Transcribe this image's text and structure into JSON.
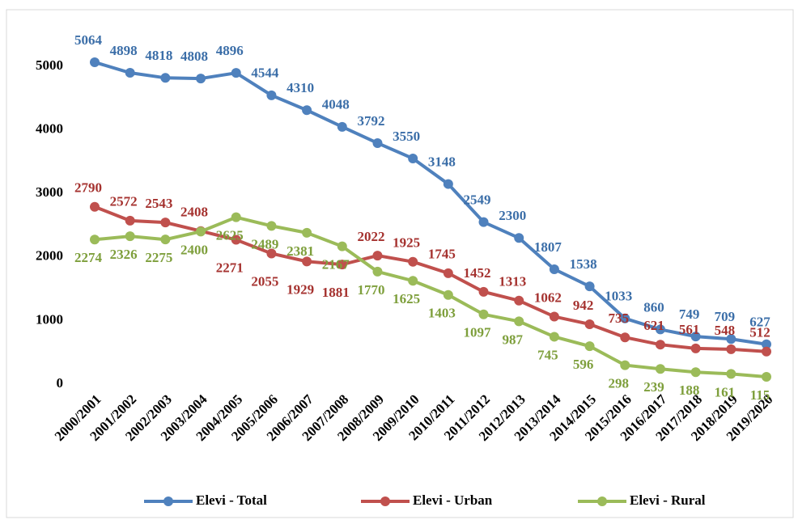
{
  "chart_data": {
    "type": "line",
    "categories": [
      "2000/2001",
      "2001/2002",
      "2002/2003",
      "2003/2004",
      "2004/2005",
      "2005/2006",
      "2006/2007",
      "2007/2008",
      "2008/2009",
      "2009/2010",
      "2010/2011",
      "2011/2012",
      "2012/2013",
      "2013/2014",
      "2014/2015",
      "2015/2016",
      "2016/2017",
      "2017/2018",
      "2018/2019",
      "2019/2020"
    ],
    "series": [
      {
        "name": "Elevi - Total",
        "color": "#4f81bd",
        "values": [
          5064,
          4898,
          4818,
          4808,
          4896,
          4544,
          4310,
          4048,
          3792,
          3550,
          3148,
          2549,
          2300,
          1807,
          1538,
          1033,
          860,
          749,
          709,
          627
        ]
      },
      {
        "name": "Elevi - Urban",
        "color": "#c0504d",
        "values": [
          2790,
          2572,
          2543,
          2408,
          2271,
          2055,
          1929,
          1881,
          2022,
          1925,
          1745,
          1452,
          1313,
          1062,
          942,
          735,
          621,
          561,
          548,
          512
        ]
      },
      {
        "name": "Elevi - Rural",
        "color": "#9bbb59",
        "values": [
          2274,
          2326,
          2275,
          2400,
          2625,
          2489,
          2381,
          2167,
          1770,
          1625,
          1403,
          1097,
          987,
          745,
          596,
          298,
          239,
          188,
          161,
          115
        ]
      }
    ],
    "ylim": [
      0,
      5000
    ],
    "yticks": [
      0,
      1000,
      2000,
      3000,
      4000,
      5000
    ],
    "grid": false,
    "legend": "bottom"
  }
}
